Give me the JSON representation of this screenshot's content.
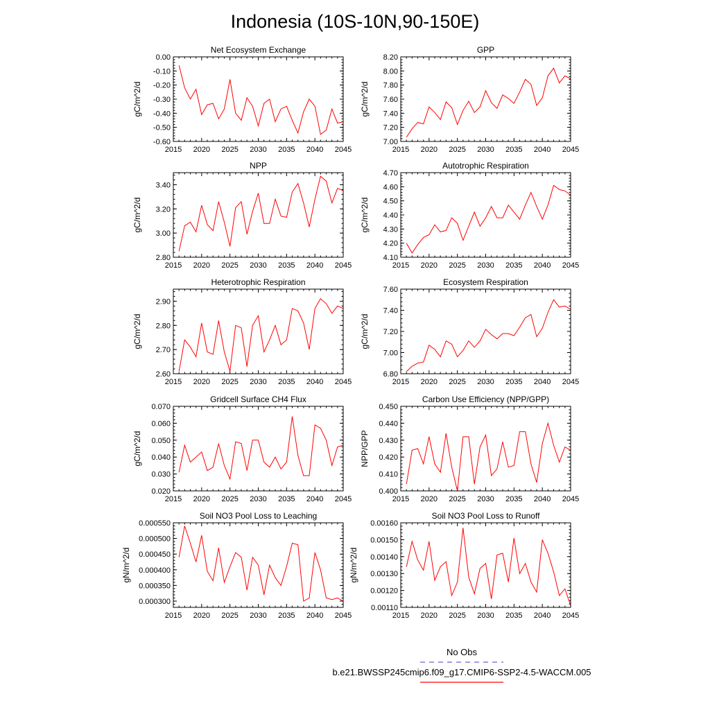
{
  "figure": {
    "title": "Indonesia (10S-10N,90-150E)",
    "legend": {
      "obs_label": "No Obs",
      "obs_color": "#6666cc",
      "model_label": "b.e21.BWSSP245cmip6.f09_g17.CMIP6-SSP2-4.5-WACCM.005",
      "model_color": "#ff0000"
    }
  },
  "chart_data": [
    {
      "type": "line",
      "title": "Net Ecosystem Exchange",
      "ylabel": "gC/m^2/d",
      "xlim": [
        2015,
        2045
      ],
      "ylim": [
        -0.6,
        0.0
      ],
      "x_ticks": [
        2015,
        2020,
        2025,
        2030,
        2035,
        2040,
        2045
      ],
      "y_ticks": [
        "0.00",
        "-0.10",
        "-0.20",
        "-0.30",
        "-0.40",
        "-0.50",
        "-0.60"
      ],
      "x": [
        2016,
        2017,
        2018,
        2019,
        2020,
        2021,
        2022,
        2023,
        2024,
        2025,
        2026,
        2027,
        2028,
        2029,
        2030,
        2031,
        2032,
        2033,
        2034,
        2035,
        2036,
        2037,
        2038,
        2039,
        2040,
        2041,
        2042,
        2043,
        2044,
        2045
      ],
      "series": [
        {
          "name": "model",
          "values": [
            -0.06,
            -0.22,
            -0.3,
            -0.23,
            -0.41,
            -0.34,
            -0.33,
            -0.44,
            -0.37,
            -0.16,
            -0.4,
            -0.45,
            -0.29,
            -0.35,
            -0.49,
            -0.33,
            -0.3,
            -0.46,
            -0.37,
            -0.35,
            -0.45,
            -0.54,
            -0.39,
            -0.3,
            -0.35,
            -0.55,
            -0.52,
            -0.37,
            -0.47,
            -0.46
          ]
        }
      ]
    },
    {
      "type": "line",
      "title": "GPP",
      "ylabel": "gC/m^2/d",
      "xlim": [
        2015,
        2045
      ],
      "ylim": [
        7.0,
        8.2
      ],
      "x_ticks": [
        2015,
        2020,
        2025,
        2030,
        2035,
        2040,
        2045
      ],
      "y_ticks": [
        "8.20",
        "8.00",
        "7.80",
        "7.60",
        "7.40",
        "7.20",
        "7.00"
      ],
      "x": [
        2016,
        2017,
        2018,
        2019,
        2020,
        2021,
        2022,
        2023,
        2024,
        2025,
        2026,
        2027,
        2028,
        2029,
        2030,
        2031,
        2032,
        2033,
        2034,
        2035,
        2036,
        2037,
        2038,
        2039,
        2040,
        2041,
        2042,
        2043,
        2044,
        2045
      ],
      "series": [
        {
          "name": "model",
          "values": [
            7.06,
            7.18,
            7.27,
            7.25,
            7.49,
            7.41,
            7.31,
            7.56,
            7.48,
            7.24,
            7.44,
            7.57,
            7.41,
            7.49,
            7.72,
            7.55,
            7.47,
            7.66,
            7.61,
            7.54,
            7.7,
            7.88,
            7.81,
            7.51,
            7.62,
            7.93,
            8.04,
            7.83,
            7.93,
            7.89
          ]
        }
      ]
    },
    {
      "type": "line",
      "title": "NPP",
      "ylabel": "gC/m^2/d",
      "xlim": [
        2015,
        2045
      ],
      "ylim": [
        2.8,
        3.5
      ],
      "x_ticks": [
        2015,
        2020,
        2025,
        2030,
        2035,
        2040,
        2045
      ],
      "y_ticks": [
        "3.40",
        "3.20",
        "3.00",
        "2.80"
      ],
      "x": [
        2016,
        2017,
        2018,
        2019,
        2020,
        2021,
        2022,
        2023,
        2024,
        2025,
        2026,
        2027,
        2028,
        2029,
        2030,
        2031,
        2032,
        2033,
        2034,
        2035,
        2036,
        2037,
        2038,
        2039,
        2040,
        2041,
        2042,
        2043,
        2044,
        2045
      ],
      "series": [
        {
          "name": "model",
          "values": [
            2.85,
            3.06,
            3.09,
            3.01,
            3.23,
            3.07,
            3.02,
            3.26,
            3.09,
            2.89,
            3.21,
            3.26,
            2.99,
            3.18,
            3.33,
            3.08,
            3.08,
            3.28,
            3.14,
            3.13,
            3.34,
            3.41,
            3.25,
            3.05,
            3.28,
            3.47,
            3.43,
            3.25,
            3.37,
            3.35
          ]
        }
      ]
    },
    {
      "type": "line",
      "title": "Autotrophic Respiration",
      "ylabel": "gC/m^2/d",
      "xlim": [
        2015,
        2045
      ],
      "ylim": [
        4.1,
        4.7
      ],
      "x_ticks": [
        2015,
        2020,
        2025,
        2030,
        2035,
        2040,
        2045
      ],
      "y_ticks": [
        "4.70",
        "4.60",
        "4.50",
        "4.40",
        "4.30",
        "4.20",
        "4.10"
      ],
      "x": [
        2016,
        2017,
        2018,
        2019,
        2020,
        2021,
        2022,
        2023,
        2024,
        2025,
        2026,
        2027,
        2028,
        2029,
        2030,
        2031,
        2032,
        2033,
        2034,
        2035,
        2036,
        2037,
        2038,
        2039,
        2040,
        2041,
        2042,
        2043,
        2044,
        2045
      ],
      "series": [
        {
          "name": "model",
          "values": [
            4.2,
            4.13,
            4.19,
            4.24,
            4.26,
            4.33,
            4.28,
            4.29,
            4.38,
            4.34,
            4.22,
            4.32,
            4.42,
            4.32,
            4.38,
            4.46,
            4.38,
            4.38,
            4.47,
            4.42,
            4.37,
            4.47,
            4.56,
            4.46,
            4.37,
            4.47,
            4.61,
            4.58,
            4.57,
            4.54
          ]
        }
      ]
    },
    {
      "type": "line",
      "title": "Heterotrophic Respiration",
      "ylabel": "gC/m^2/d",
      "xlim": [
        2015,
        2045
      ],
      "ylim": [
        2.6,
        2.95
      ],
      "x_ticks": [
        2015,
        2020,
        2025,
        2030,
        2035,
        2040,
        2045
      ],
      "y_ticks": [
        "2.90",
        "2.80",
        "2.70",
        "2.60"
      ],
      "x": [
        2016,
        2017,
        2018,
        2019,
        2020,
        2021,
        2022,
        2023,
        2024,
        2025,
        2026,
        2027,
        2028,
        2029,
        2030,
        2031,
        2032,
        2033,
        2034,
        2035,
        2036,
        2037,
        2038,
        2039,
        2040,
        2041,
        2042,
        2043,
        2044,
        2045
      ],
      "series": [
        {
          "name": "model",
          "values": [
            2.61,
            2.74,
            2.71,
            2.67,
            2.81,
            2.69,
            2.68,
            2.82,
            2.69,
            2.61,
            2.8,
            2.79,
            2.63,
            2.8,
            2.84,
            2.69,
            2.74,
            2.8,
            2.72,
            2.74,
            2.87,
            2.86,
            2.81,
            2.7,
            2.87,
            2.91,
            2.89,
            2.85,
            2.88,
            2.87
          ]
        }
      ]
    },
    {
      "type": "line",
      "title": "Ecosystem Respiration",
      "ylabel": "gC/m^2/d",
      "xlim": [
        2015,
        2045
      ],
      "ylim": [
        6.8,
        7.6
      ],
      "x_ticks": [
        2015,
        2020,
        2025,
        2030,
        2035,
        2040,
        2045
      ],
      "y_ticks": [
        "7.60",
        "7.40",
        "7.20",
        "7.00",
        "6.80"
      ],
      "x": [
        2016,
        2017,
        2018,
        2019,
        2020,
        2021,
        2022,
        2023,
        2024,
        2025,
        2026,
        2027,
        2028,
        2029,
        2030,
        2031,
        2032,
        2033,
        2034,
        2035,
        2036,
        2037,
        2038,
        2039,
        2040,
        2041,
        2042,
        2043,
        2044,
        2045
      ],
      "series": [
        {
          "name": "model",
          "values": [
            6.82,
            6.87,
            6.9,
            6.91,
            7.07,
            7.03,
            6.96,
            7.11,
            7.08,
            6.96,
            7.02,
            7.11,
            7.05,
            7.11,
            7.22,
            7.17,
            7.13,
            7.18,
            7.18,
            7.16,
            7.24,
            7.33,
            7.36,
            7.15,
            7.23,
            7.38,
            7.5,
            7.43,
            7.44,
            7.41
          ]
        }
      ]
    },
    {
      "type": "line",
      "title": "Gridcell Surface CH4 Flux",
      "ylabel": "gC/m^2/d",
      "xlim": [
        2015,
        2045
      ],
      "ylim": [
        0.02,
        0.07
      ],
      "x_ticks": [
        2015,
        2020,
        2025,
        2030,
        2035,
        2040,
        2045
      ],
      "y_ticks": [
        "0.070",
        "0.060",
        "0.050",
        "0.040",
        "0.030",
        "0.020"
      ],
      "x": [
        2016,
        2017,
        2018,
        2019,
        2020,
        2021,
        2022,
        2023,
        2024,
        2025,
        2026,
        2027,
        2028,
        2029,
        2030,
        2031,
        2032,
        2033,
        2034,
        2035,
        2036,
        2037,
        2038,
        2039,
        2040,
        2041,
        2042,
        2043,
        2044,
        2045
      ],
      "series": [
        {
          "name": "model",
          "values": [
            0.031,
            0.047,
            0.037,
            0.04,
            0.043,
            0.032,
            0.034,
            0.048,
            0.035,
            0.027,
            0.049,
            0.048,
            0.032,
            0.05,
            0.05,
            0.037,
            0.034,
            0.04,
            0.033,
            0.037,
            0.064,
            0.041,
            0.029,
            0.029,
            0.059,
            0.057,
            0.05,
            0.035,
            0.046,
            0.047
          ]
        }
      ]
    },
    {
      "type": "line",
      "title": "Carbon Use Efficiency (NPP/GPP)",
      "ylabel": "NPP/GPP",
      "xlim": [
        2015,
        2045
      ],
      "ylim": [
        0.4,
        0.45
      ],
      "x_ticks": [
        2015,
        2020,
        2025,
        2030,
        2035,
        2040,
        2045
      ],
      "y_ticks": [
        "0.450",
        "0.440",
        "0.430",
        "0.420",
        "0.410",
        "0.400"
      ],
      "x": [
        2016,
        2017,
        2018,
        2019,
        2020,
        2021,
        2022,
        2023,
        2024,
        2025,
        2026,
        2027,
        2028,
        2029,
        2030,
        2031,
        2032,
        2033,
        2034,
        2035,
        2036,
        2037,
        2038,
        2039,
        2040,
        2041,
        2042,
        2043,
        2044,
        2045
      ],
      "series": [
        {
          "name": "model",
          "values": [
            0.404,
            0.424,
            0.425,
            0.416,
            0.432,
            0.416,
            0.411,
            0.434,
            0.414,
            0.4,
            0.432,
            0.432,
            0.404,
            0.426,
            0.433,
            0.409,
            0.413,
            0.429,
            0.414,
            0.415,
            0.435,
            0.435,
            0.416,
            0.405,
            0.428,
            0.44,
            0.427,
            0.417,
            0.426,
            0.424
          ]
        }
      ]
    },
    {
      "type": "line",
      "title": "Soil NO3 Pool Loss to Leaching",
      "ylabel": "gN/m^2/d",
      "xlim": [
        2015,
        2045
      ],
      "ylim": [
        0.00028,
        0.00055
      ],
      "x_ticks": [
        2015,
        2020,
        2025,
        2030,
        2035,
        2040,
        2045
      ],
      "y_ticks": [
        "0.000550",
        "0.000500",
        "0.000450",
        "0.000400",
        "0.000350",
        "0.000300"
      ],
      "x": [
        2016,
        2017,
        2018,
        2019,
        2020,
        2021,
        2022,
        2023,
        2024,
        2025,
        2026,
        2027,
        2028,
        2029,
        2030,
        2031,
        2032,
        2033,
        2034,
        2035,
        2036,
        2037,
        2038,
        2039,
        2040,
        2041,
        2042,
        2043,
        2044,
        2045
      ],
      "series": [
        {
          "name": "model",
          "values": [
            0.00044,
            0.00054,
            0.000485,
            0.000425,
            0.00051,
            0.000395,
            0.000365,
            0.00047,
            0.00036,
            0.00041,
            0.000455,
            0.00044,
            0.000335,
            0.00044,
            0.000415,
            0.00032,
            0.000415,
            0.000375,
            0.00035,
            0.00041,
            0.000485,
            0.00048,
            0.0003,
            0.00031,
            0.000455,
            0.0004,
            0.00031,
            0.000305,
            0.00031,
            0.0003
          ]
        }
      ]
    },
    {
      "type": "line",
      "title": "Soil NO3 Pool Loss to Runoff",
      "ylabel": "gN/m^2/d",
      "xlim": [
        2015,
        2045
      ],
      "ylim": [
        0.0011,
        0.0016
      ],
      "x_ticks": [
        2015,
        2020,
        2025,
        2030,
        2035,
        2040,
        2045
      ],
      "y_ticks": [
        "0.00160",
        "0.00150",
        "0.00140",
        "0.00130",
        "0.00120",
        "0.00110"
      ],
      "x": [
        2016,
        2017,
        2018,
        2019,
        2020,
        2021,
        2022,
        2023,
        2024,
        2025,
        2026,
        2027,
        2028,
        2029,
        2030,
        2031,
        2032,
        2033,
        2034,
        2035,
        2036,
        2037,
        2038,
        2039,
        2040,
        2041,
        2042,
        2043,
        2044,
        2045
      ],
      "series": [
        {
          "name": "model",
          "values": [
            0.00134,
            0.00149,
            0.00138,
            0.00132,
            0.00149,
            0.00126,
            0.00134,
            0.00137,
            0.00117,
            0.00125,
            0.00157,
            0.00128,
            0.00118,
            0.00133,
            0.00136,
            0.00115,
            0.00141,
            0.00142,
            0.00125,
            0.00151,
            0.0013,
            0.00136,
            0.00125,
            0.00119,
            0.0015,
            0.00142,
            0.00131,
            0.00117,
            0.00121,
            0.00111
          ]
        }
      ]
    }
  ]
}
